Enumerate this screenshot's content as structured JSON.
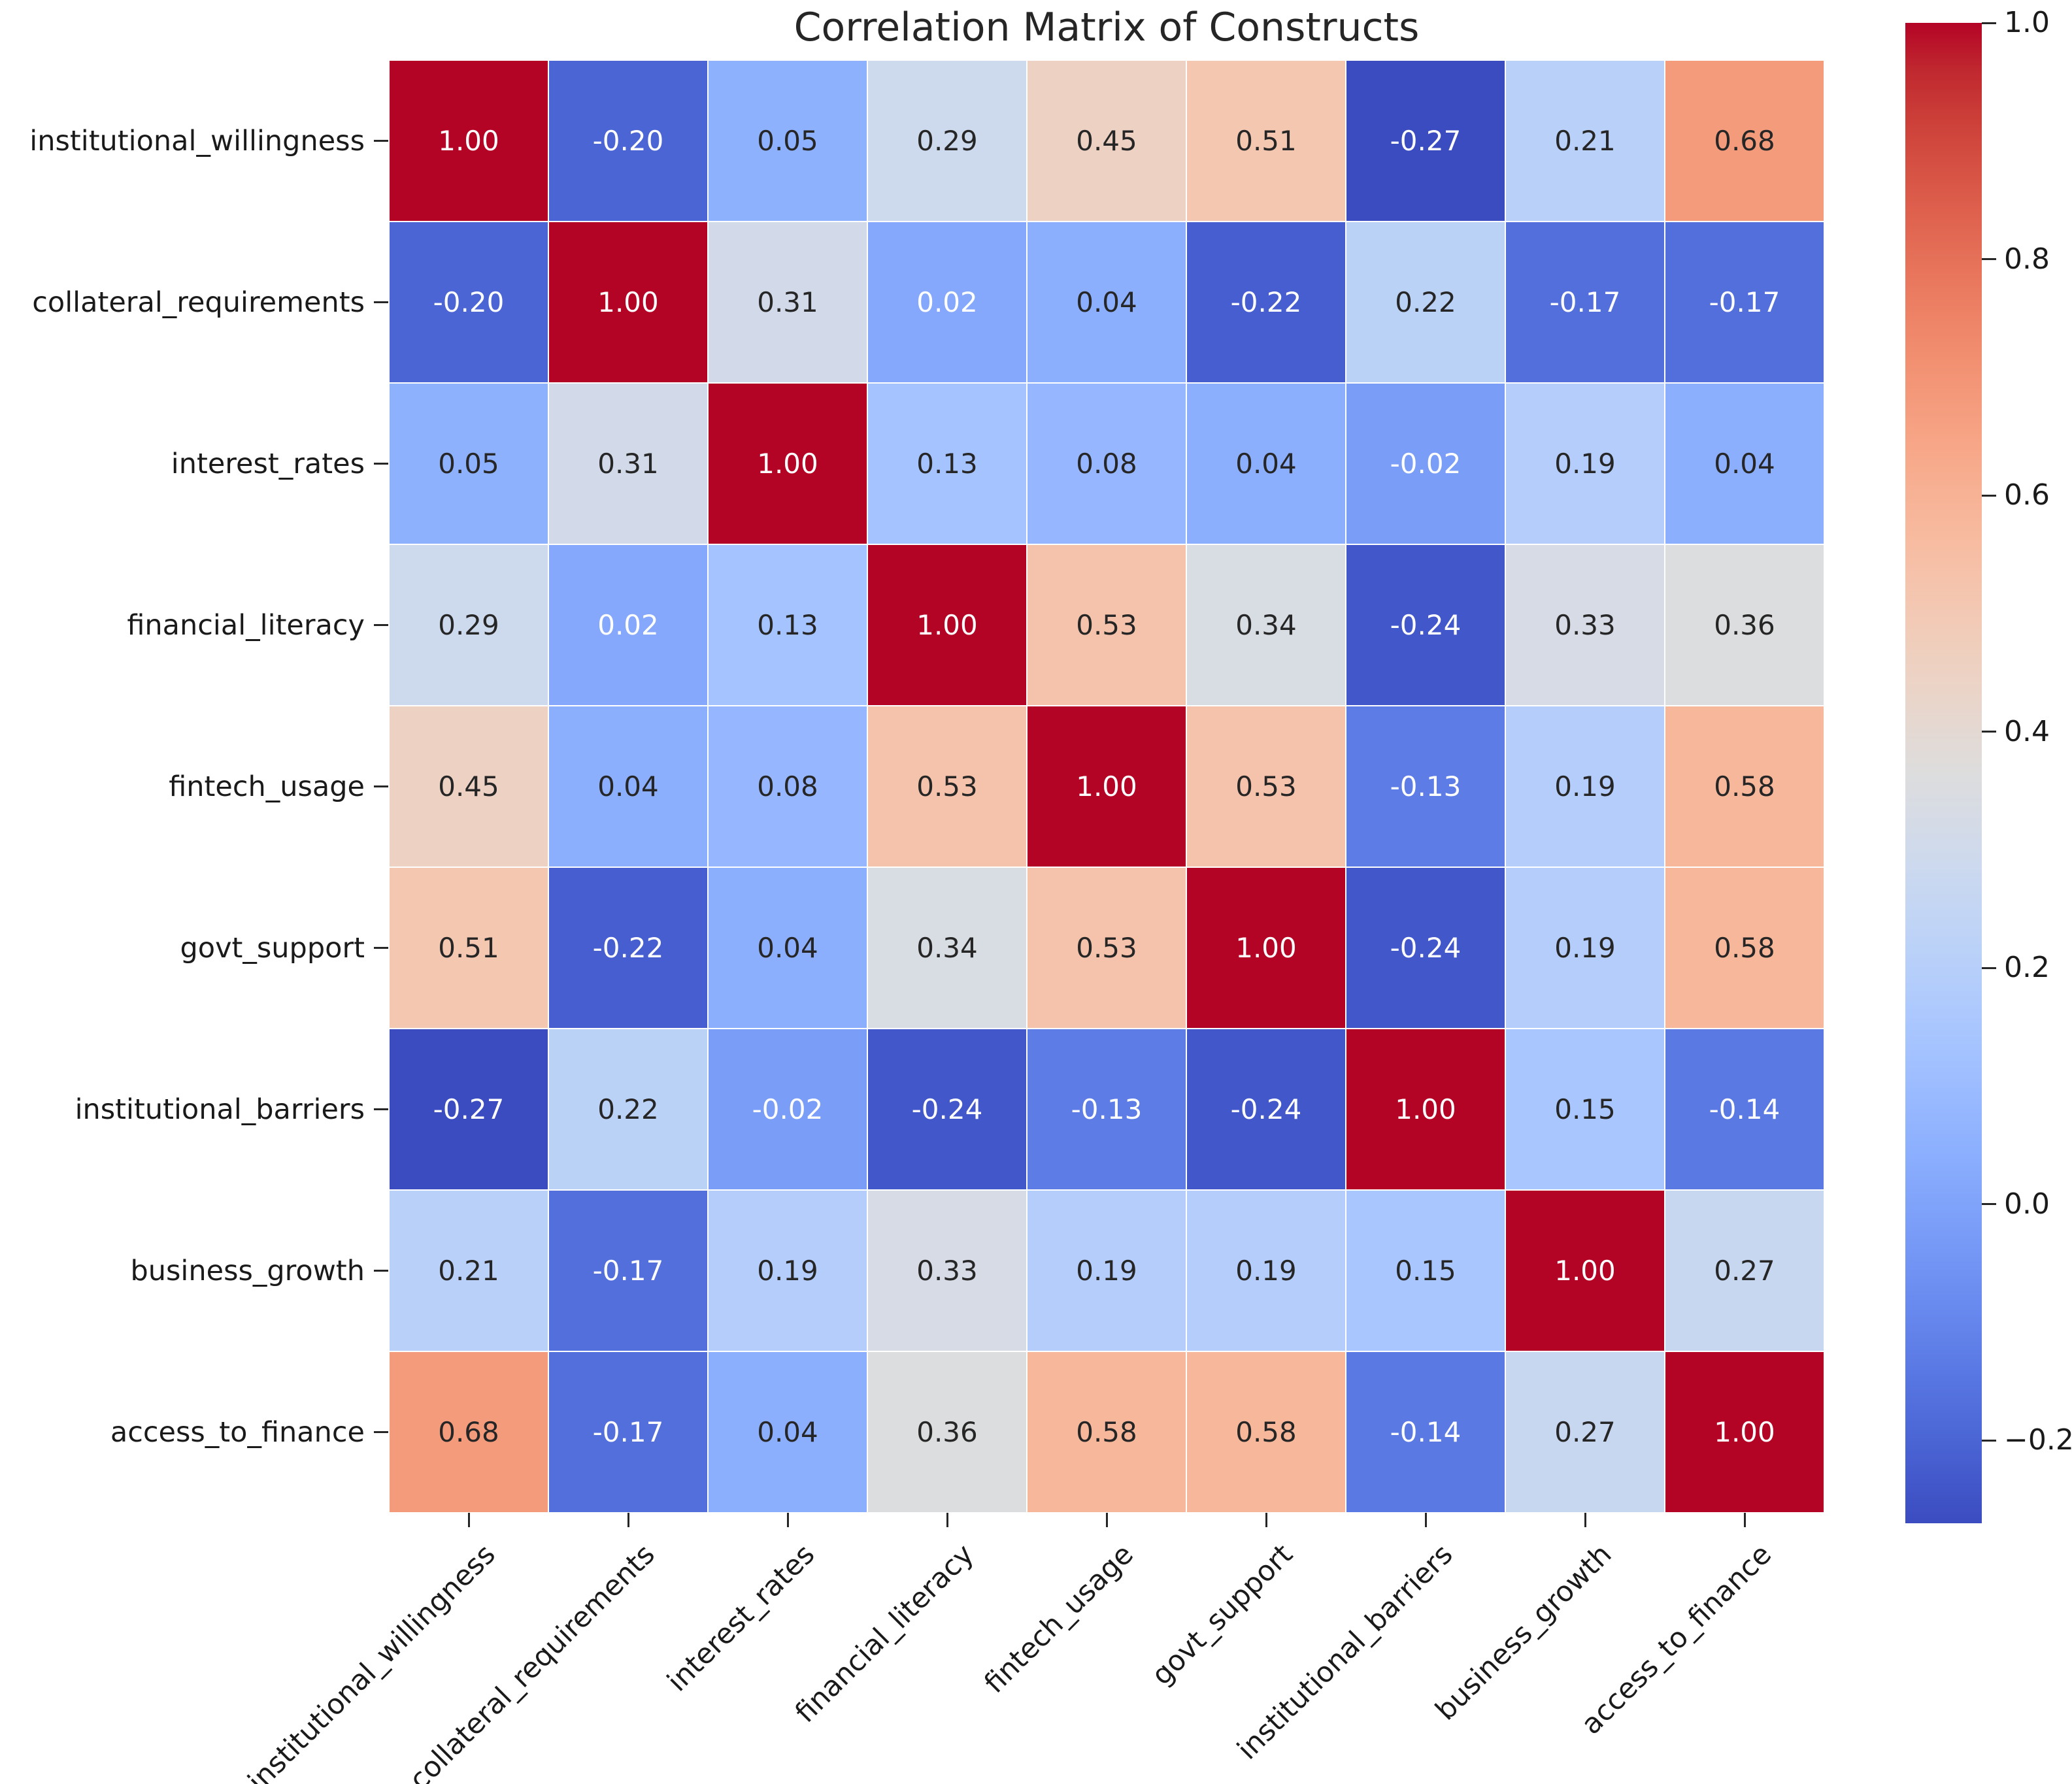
{
  "title": "Correlation Matrix of Constructs",
  "colors": {
    "background": "#ffffff",
    "annot_dark": "#262626",
    "annot_light": "#ffffff",
    "tick_label": "#1a1a1a",
    "cmap_low": "#3b4cc0",
    "cmap_mid": "#dddddd",
    "cmap_high": "#b40426"
  },
  "chart_data": {
    "type": "heatmap",
    "title": "Correlation Matrix of Constructs",
    "labels": [
      "institutional_willingness",
      "collateral_requirements",
      "interest_rates",
      "financial_literacy",
      "fintech_usage",
      "govt_support",
      "institutional_barriers",
      "business_growth",
      "access_to_finance"
    ],
    "matrix": [
      [
        1.0,
        -0.2,
        0.05,
        0.29,
        0.45,
        0.51,
        -0.27,
        0.21,
        0.68
      ],
      [
        -0.2,
        1.0,
        0.31,
        0.02,
        0.04,
        -0.22,
        0.22,
        -0.17,
        -0.17
      ],
      [
        0.05,
        0.31,
        1.0,
        0.13,
        0.08,
        0.04,
        -0.02,
        0.19,
        0.04
      ],
      [
        0.29,
        0.02,
        0.13,
        1.0,
        0.53,
        0.34,
        -0.24,
        0.33,
        0.36
      ],
      [
        0.45,
        0.04,
        0.08,
        0.53,
        1.0,
        0.53,
        -0.13,
        0.19,
        0.58
      ],
      [
        0.51,
        -0.22,
        0.04,
        0.34,
        0.53,
        1.0,
        -0.24,
        0.19,
        0.58
      ],
      [
        -0.27,
        0.22,
        -0.02,
        -0.24,
        -0.13,
        -0.24,
        1.0,
        0.15,
        -0.14
      ],
      [
        0.21,
        -0.17,
        0.19,
        0.33,
        0.19,
        0.19,
        0.15,
        1.0,
        0.27
      ],
      [
        0.68,
        -0.17,
        0.04,
        0.36,
        0.58,
        0.58,
        -0.14,
        0.27,
        1.0
      ]
    ],
    "annot_decimals": 2,
    "colormap": "coolwarm",
    "vmin": -0.27,
    "vmax": 1.0,
    "colorbar_ticks": [
      1.0,
      0.8,
      0.6,
      0.4,
      0.2,
      0.0,
      -0.2
    ],
    "colorbar_tick_labels": [
      "1.0",
      "0.8",
      "0.6",
      "0.4",
      "0.2",
      "0.0",
      "−0.2"
    ],
    "colorbar_position": "right",
    "grid": "white cell separators",
    "xlabel": "",
    "ylabel": "",
    "colormap_rgb": [
      [
        59,
        76,
        192
      ],
      [
        68,
        90,
        204
      ],
      [
        77,
        104,
        215
      ],
      [
        87,
        117,
        225
      ],
      [
        98,
        130,
        234
      ],
      [
        108,
        142,
        241
      ],
      [
        119,
        154,
        247
      ],
      [
        130,
        165,
        251
      ],
      [
        141,
        176,
        254
      ],
      [
        152,
        185,
        255
      ],
      [
        163,
        194,
        255
      ],
      [
        174,
        201,
        253
      ],
      [
        184,
        208,
        249
      ],
      [
        194,
        213,
        244
      ],
      [
        204,
        217,
        238
      ],
      [
        213,
        219,
        230
      ],
      [
        221,
        221,
        221
      ],
      [
        229,
        216,
        209
      ],
      [
        236,
        211,
        197
      ],
      [
        241,
        204,
        185
      ],
      [
        245,
        196,
        173
      ],
      [
        247,
        187,
        160
      ],
      [
        247,
        177,
        148
      ],
      [
        247,
        166,
        135
      ],
      [
        244,
        154,
        123
      ],
      [
        241,
        141,
        111
      ],
      [
        236,
        127,
        99
      ],
      [
        229,
        112,
        88
      ],
      [
        222,
        96,
        77
      ],
      [
        213,
        80,
        66
      ],
      [
        203,
        62,
        56
      ],
      [
        192,
        40,
        47
      ],
      [
        180,
        4,
        38
      ]
    ]
  }
}
